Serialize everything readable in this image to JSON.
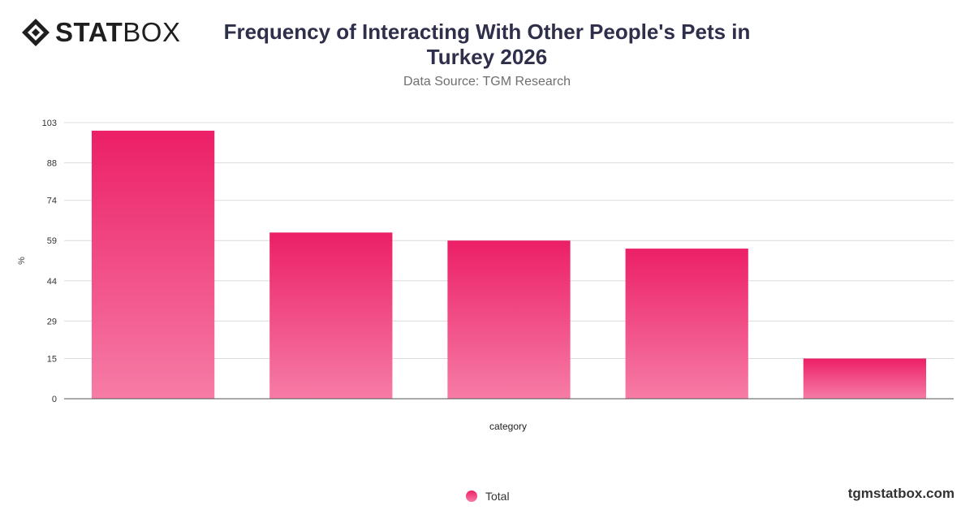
{
  "brand": {
    "logo_bold": "STAT",
    "logo_light": "BOX",
    "site": "tgmstatbox.com"
  },
  "chart_data": {
    "type": "bar",
    "title": "Frequency of Interacting With Other People's Pets in Turkey 2026",
    "subtitle": "Data Source: TGM Research",
    "xlabel": "category",
    "ylabel": "%",
    "categories": [
      "",
      "",
      "",
      "",
      ""
    ],
    "series": [
      {
        "name": "Total",
        "values": [
          100,
          62,
          59,
          56,
          15
        ]
      }
    ],
    "yticks": [
      0,
      15,
      29,
      44,
      59,
      74,
      88,
      103
    ],
    "ylim": [
      0,
      103
    ],
    "grid": true,
    "legend": "bottom-center",
    "colors": {
      "bar_top": "#ec1f67",
      "bar_bottom": "#f67ca6"
    }
  }
}
